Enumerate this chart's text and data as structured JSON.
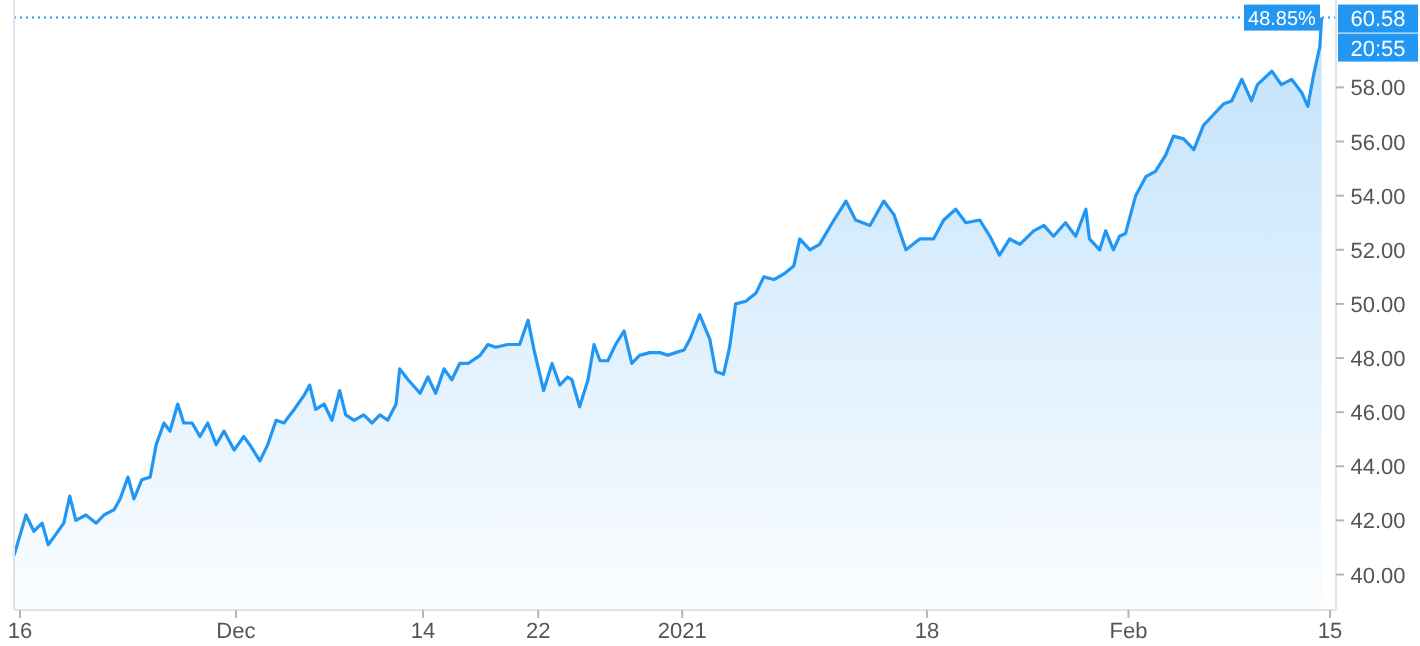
{
  "chart_data": {
    "type": "area",
    "x": [
      "2020-11-15T14:00",
      "2020-11-16T10:00",
      "2020-11-16T23:00",
      "2020-11-17T13:00",
      "2020-11-17T23:00",
      "2020-11-18T09:00",
      "2020-11-19T01:00",
      "2020-11-19T11:00",
      "2020-11-19T21:00",
      "2020-11-20T14:00",
      "2020-11-21T07:00",
      "2020-11-21T20:00",
      "2020-11-22T13:00",
      "2020-11-22T23:00",
      "2020-11-23T12:00",
      "2020-11-23T22:00",
      "2020-11-24T11:00",
      "2020-11-25T01:00",
      "2020-11-25T11:00",
      "2020-11-26T00:00",
      "2020-11-26T10:00",
      "2020-11-26T23:00",
      "2020-11-27T09:00",
      "2020-11-27T23:00",
      "2020-11-28T12:00",
      "2020-11-29T01:00",
      "2020-11-29T15:00",
      "2020-11-30T04:00",
      "2020-11-30T21:00",
      "2020-12-01T13:00",
      "2020-12-01T23:00",
      "2020-12-02T16:00",
      "2020-12-03T05:00",
      "2020-12-03T19:00",
      "2020-12-04T08:00",
      "2020-12-05T01:00",
      "2020-12-05T17:00",
      "2020-12-06T03:00",
      "2020-12-06T13:00",
      "2020-12-07T03:00",
      "2020-12-07T16:00",
      "2020-12-08T05:00",
      "2020-12-08T15:00",
      "2020-12-09T05:00",
      "2020-12-09T21:00",
      "2020-12-10T11:00",
      "2020-12-11T00:00",
      "2020-12-11T13:00",
      "2020-12-12T03:00",
      "2020-12-12T09:00",
      "2020-12-12T23:00",
      "2020-12-13T19:00",
      "2020-12-14T08:00",
      "2020-12-14T21:00",
      "2020-12-15T11:00",
      "2020-12-16T00:00",
      "2020-12-16T13:00",
      "2020-12-17T03:00",
      "2020-12-17T23:00",
      "2020-12-18T12:00",
      "2020-12-19T01:00",
      "2020-12-19T21:00",
      "2020-12-20T17:00",
      "2020-12-21T07:00",
      "2020-12-21T17:00",
      "2020-12-22T09:00",
      "2020-12-22T23:00",
      "2020-12-23T12:00",
      "2020-12-24T01:00",
      "2020-12-24T08:00",
      "2020-12-24T21:00",
      "2020-12-25T11:00",
      "2020-12-25T21:00",
      "2020-12-26T07:00",
      "2020-12-26T20:00",
      "2020-12-27T09:00",
      "2020-12-27T23:00",
      "2020-12-28T12:00",
      "2020-12-29T01:00",
      "2020-12-29T18:00",
      "2020-12-30T11:00",
      "2020-12-31T00:00",
      "2020-12-31T13:00",
      "2021-01-01T03:00",
      "2021-01-01T13:00",
      "2021-01-02T05:00",
      "2021-01-02T22:00",
      "2021-01-03T08:00",
      "2021-01-03T21:00",
      "2021-01-04T07:00",
      "2021-01-04T17:00",
      "2021-01-05T10:00",
      "2021-01-06T03:00",
      "2021-01-06T16:00",
      "2021-01-07T09:00",
      "2021-01-08T01:00",
      "2021-01-08T18:00",
      "2021-01-09T04:00",
      "2021-01-09T21:00",
      "2021-01-10T13:00",
      "2021-01-11T13:00",
      "2021-01-12T09:00",
      "2021-01-13T01:00",
      "2021-01-14T01:00",
      "2021-01-15T00:00",
      "2021-01-15T17:00",
      "2021-01-16T13:00",
      "2021-01-17T12:00",
      "2021-01-18T11:00",
      "2021-01-19T04:00",
      "2021-01-20T00:00",
      "2021-01-20T17:00",
      "2021-01-21T16:00",
      "2021-01-22T09:00",
      "2021-01-23T01:00",
      "2021-01-23T18:00",
      "2021-01-24T11:00",
      "2021-01-25T10:00",
      "2021-01-26T03:00",
      "2021-01-26T19:00",
      "2021-01-27T15:00",
      "2021-01-28T08:00",
      "2021-01-29T01:00",
      "2021-01-29T07:00",
      "2021-01-30T00:00",
      "2021-01-30T10:00",
      "2021-01-30T23:00",
      "2021-01-31T09:00",
      "2021-01-31T19:00",
      "2021-02-01T12:00",
      "2021-02-02T05:00",
      "2021-02-02T21:00",
      "2021-02-03T14:00",
      "2021-02-04T03:00",
      "2021-02-04T20:00",
      "2021-02-05T13:00",
      "2021-02-06T05:00",
      "2021-02-06T22:00",
      "2021-02-07T15:00",
      "2021-02-08T04:00",
      "2021-02-08T21:00",
      "2021-02-09T13:00",
      "2021-02-09T23:00",
      "2021-02-10T23:00",
      "2021-02-11T15:00",
      "2021-02-12T08:00",
      "2021-02-13T01:00",
      "2021-02-13T11:00",
      "2021-02-13T21:00",
      "2021-02-14T07:00",
      "2021-02-14T10:00"
    ],
    "series": [
      {
        "color": "#2196f3",
        "values": [
          40.7,
          42.2,
          41.6,
          41.9,
          41.1,
          41.4,
          41.9,
          42.9,
          42.0,
          42.2,
          41.9,
          42.2,
          42.4,
          42.8,
          43.6,
          42.8,
          43.5,
          43.6,
          44.8,
          45.6,
          45.3,
          46.3,
          45.6,
          45.6,
          45.1,
          45.6,
          44.8,
          45.3,
          44.6,
          45.1,
          44.8,
          44.2,
          44.8,
          45.7,
          45.6,
          46.1,
          46.6,
          47.0,
          46.1,
          46.3,
          45.7,
          46.8,
          45.9,
          45.7,
          45.9,
          45.6,
          45.9,
          45.7,
          46.3,
          47.6,
          47.2,
          46.7,
          47.3,
          46.7,
          47.6,
          47.2,
          47.8,
          47.8,
          48.1,
          48.5,
          48.4,
          48.5,
          48.5,
          49.4,
          48.3,
          46.8,
          47.8,
          47.0,
          47.3,
          47.2,
          46.2,
          47.2,
          48.5,
          47.9,
          47.9,
          48.5,
          49.0,
          47.8,
          48.1,
          48.2,
          48.2,
          48.1,
          48.2,
          48.3,
          48.7,
          49.6,
          48.7,
          47.5,
          47.4,
          48.4,
          50.0,
          50.1,
          50.4,
          51.0,
          50.9,
          51.1,
          51.4,
          52.4,
          52.0,
          52.2,
          53.1,
          53.8,
          53.1,
          52.9,
          53.8,
          53.3,
          52.0,
          52.4,
          52.4,
          53.1,
          53.5,
          53.0,
          53.1,
          52.5,
          51.8,
          52.4,
          52.2,
          52.7,
          52.9,
          52.5,
          53.0,
          52.5,
          53.5,
          52.4,
          52.0,
          52.7,
          52.0,
          52.5,
          52.6,
          54.0,
          54.7,
          54.9,
          55.5,
          56.2,
          56.1,
          55.7,
          56.6,
          57.0,
          57.4,
          57.5,
          58.3,
          57.5,
          58.1,
          58.6,
          58.1,
          58.3,
          57.8,
          57.3,
          58.5,
          59.5,
          60.58
        ]
      }
    ],
    "xlim": [
      "2020-11-15T14:00",
      "2021-02-15T10:00"
    ],
    "xticks": [
      {
        "value": "2020-11-16",
        "label": "16"
      },
      {
        "value": "2020-12-01",
        "label": "Dec"
      },
      {
        "value": "2020-12-14",
        "label": "14"
      },
      {
        "value": "2020-12-22",
        "label": "22"
      },
      {
        "value": "2021-01-01",
        "label": "2021"
      },
      {
        "value": "2021-01-18",
        "label": "18"
      },
      {
        "value": "2021-02-01",
        "label": "Feb"
      },
      {
        "value": "2021-02-15",
        "label": "15"
      }
    ],
    "ylim": [
      38.69,
      61.23
    ],
    "yticks": [
      {
        "value": 40,
        "label": "40.00"
      },
      {
        "value": 42,
        "label": "42.00"
      },
      {
        "value": 44,
        "label": "44.00"
      },
      {
        "value": 46,
        "label": "46.00"
      },
      {
        "value": 48,
        "label": "48.00"
      },
      {
        "value": 50,
        "label": "50.00"
      },
      {
        "value": 52,
        "label": "52.00"
      },
      {
        "value": 54,
        "label": "54.00"
      },
      {
        "value": 56,
        "label": "56.00"
      },
      {
        "value": 58,
        "label": "58.00"
      }
    ],
    "ref_lines": [
      {
        "axis": "y",
        "value": 60.58,
        "label": "60.58",
        "color": "#2196f3",
        "line_style": "dotted"
      }
    ],
    "annotations": [
      "48.85%",
      "20:55"
    ]
  }
}
